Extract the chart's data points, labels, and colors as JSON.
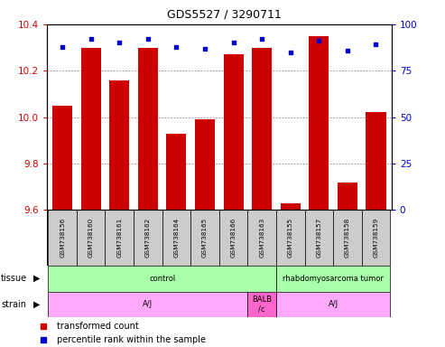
{
  "title": "GDS5527 / 3290711",
  "samples": [
    "GSM738156",
    "GSM738160",
    "GSM738161",
    "GSM738162",
    "GSM738164",
    "GSM738165",
    "GSM738166",
    "GSM738163",
    "GSM738155",
    "GSM738157",
    "GSM738158",
    "GSM738159"
  ],
  "red_values": [
    10.05,
    10.3,
    10.16,
    10.3,
    9.93,
    9.99,
    10.27,
    10.3,
    9.63,
    10.35,
    9.72,
    10.02
  ],
  "blue_values": [
    88,
    92,
    90,
    92,
    88,
    87,
    90,
    92,
    85,
    91,
    86,
    89
  ],
  "y_min": 9.6,
  "y_max": 10.4,
  "y_ticks": [
    9.6,
    9.8,
    10.0,
    10.2,
    10.4
  ],
  "y2_ticks": [
    0,
    25,
    50,
    75,
    100
  ],
  "bar_color": "#CC0000",
  "dot_color": "#0000CC",
  "grid_color": "#808080",
  "tissue_groups": [
    {
      "label": "control",
      "start": 0,
      "end": 8,
      "color": "#AAFFAA"
    },
    {
      "label": "rhabdomyosarcoma tumor",
      "start": 8,
      "end": 12,
      "color": "#AAFFAA"
    }
  ],
  "strain_groups": [
    {
      "label": "A/J",
      "start": 0,
      "end": 7,
      "color": "#FFAAFF"
    },
    {
      "label": "BALB\n/c",
      "start": 7,
      "end": 8,
      "color": "#FF66CC"
    },
    {
      "label": "A/J",
      "start": 8,
      "end": 12,
      "color": "#FFAAFF"
    }
  ],
  "sample_bg": "#CCCCCC",
  "border_color": "#000000"
}
